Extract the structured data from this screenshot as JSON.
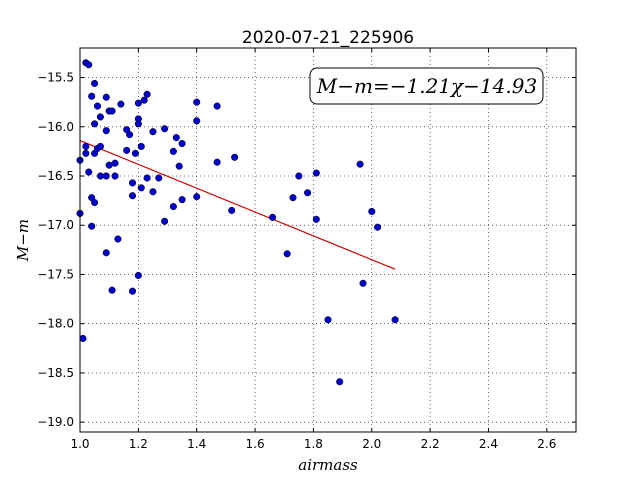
{
  "chart_data": {
    "type": "scatter",
    "title": "2020-07-21_225906",
    "xlabel": "airmass",
    "ylabel": "M−m",
    "xlim": [
      1.0,
      2.7
    ],
    "ylim": [
      -19.1,
      -15.2
    ],
    "x_ticks": [
      "1.0",
      "1.2",
      "1.4",
      "1.6",
      "1.8",
      "2.0",
      "2.2",
      "2.4",
      "2.6"
    ],
    "y_ticks": [
      "−15.5",
      "−16.0",
      "−16.5",
      "−17.0",
      "−17.5",
      "−18.0",
      "−18.5",
      "−19.0"
    ],
    "x_tick_values": [
      1.0,
      1.2,
      1.4,
      1.6,
      1.8,
      2.0,
      2.2,
      2.4,
      2.6
    ],
    "y_tick_values": [
      -15.5,
      -16.0,
      -16.5,
      -17.0,
      -17.5,
      -18.0,
      -18.5,
      -19.0
    ],
    "grid": true,
    "annotation": "M−m=−1.21χ−14.93",
    "annotation_position": "top-right",
    "fit": {
      "slope": -1.21,
      "intercept": -14.93,
      "x_range": [
        1.0,
        2.08
      ],
      "color": "#cc0000"
    },
    "point_color": "#0000cc",
    "points": [
      [
        1.02,
        -15.35
      ],
      [
        1.03,
        -15.37
      ],
      [
        1.05,
        -15.56
      ],
      [
        1.04,
        -15.69
      ],
      [
        1.06,
        -15.79
      ],
      [
        1.07,
        -15.9
      ],
      [
        1.05,
        -15.97
      ],
      [
        1.09,
        -15.7
      ],
      [
        1.1,
        -15.84
      ],
      [
        1.11,
        -15.84
      ],
      [
        1.14,
        -15.77
      ],
      [
        1.09,
        -16.04
      ],
      [
        1.0,
        -16.34
      ],
      [
        1.02,
        -16.27
      ],
      [
        1.02,
        -16.2
      ],
      [
        1.05,
        -16.27
      ],
      [
        1.06,
        -16.22
      ],
      [
        1.07,
        -16.2
      ],
      [
        1.07,
        -16.5
      ],
      [
        1.09,
        -16.5
      ],
      [
        1.03,
        -16.46
      ],
      [
        1.1,
        -16.39
      ],
      [
        1.12,
        -16.37
      ],
      [
        1.12,
        -16.5
      ],
      [
        1.04,
        -16.72
      ],
      [
        1.05,
        -16.77
      ],
      [
        1.0,
        -16.88
      ],
      [
        1.04,
        -17.01
      ],
      [
        1.13,
        -17.14
      ],
      [
        1.09,
        -17.28
      ],
      [
        1.11,
        -17.66
      ],
      [
        1.01,
        -18.15
      ],
      [
        1.16,
        -16.03
      ],
      [
        1.17,
        -16.08
      ],
      [
        1.16,
        -16.24
      ],
      [
        1.19,
        -16.27
      ],
      [
        1.2,
        -15.92
      ],
      [
        1.2,
        -15.97
      ],
      [
        1.2,
        -15.76
      ],
      [
        1.22,
        -15.73
      ],
      [
        1.23,
        -15.67
      ],
      [
        1.21,
        -16.2
      ],
      [
        1.25,
        -16.05
      ],
      [
        1.18,
        -16.57
      ],
      [
        1.21,
        -16.62
      ],
      [
        1.23,
        -16.52
      ],
      [
        1.25,
        -16.66
      ],
      [
        1.27,
        -16.52
      ],
      [
        1.18,
        -16.7
      ],
      [
        1.29,
        -16.02
      ],
      [
        1.33,
        -16.11
      ],
      [
        1.35,
        -16.17
      ],
      [
        1.32,
        -16.25
      ],
      [
        1.34,
        -16.4
      ],
      [
        1.29,
        -16.96
      ],
      [
        1.32,
        -16.81
      ],
      [
        1.35,
        -16.74
      ],
      [
        1.4,
        -16.71
      ],
      [
        1.4,
        -15.75
      ],
      [
        1.4,
        -15.94
      ],
      [
        1.47,
        -15.79
      ],
      [
        1.47,
        -16.36
      ],
      [
        1.53,
        -16.31
      ],
      [
        1.52,
        -16.85
      ],
      [
        1.2,
        -17.51
      ],
      [
        1.18,
        -17.67
      ],
      [
        1.66,
        -16.92
      ],
      [
        1.71,
        -17.29
      ],
      [
        1.73,
        -16.72
      ],
      [
        1.75,
        -16.5
      ],
      [
        1.78,
        -16.67
      ],
      [
        1.81,
        -16.47
      ],
      [
        1.81,
        -16.94
      ],
      [
        1.85,
        -17.96
      ],
      [
        1.89,
        -18.59
      ],
      [
        1.96,
        -16.38
      ],
      [
        1.97,
        -17.59
      ],
      [
        2.0,
        -16.86
      ],
      [
        2.02,
        -17.02
      ],
      [
        2.08,
        -17.96
      ]
    ]
  }
}
